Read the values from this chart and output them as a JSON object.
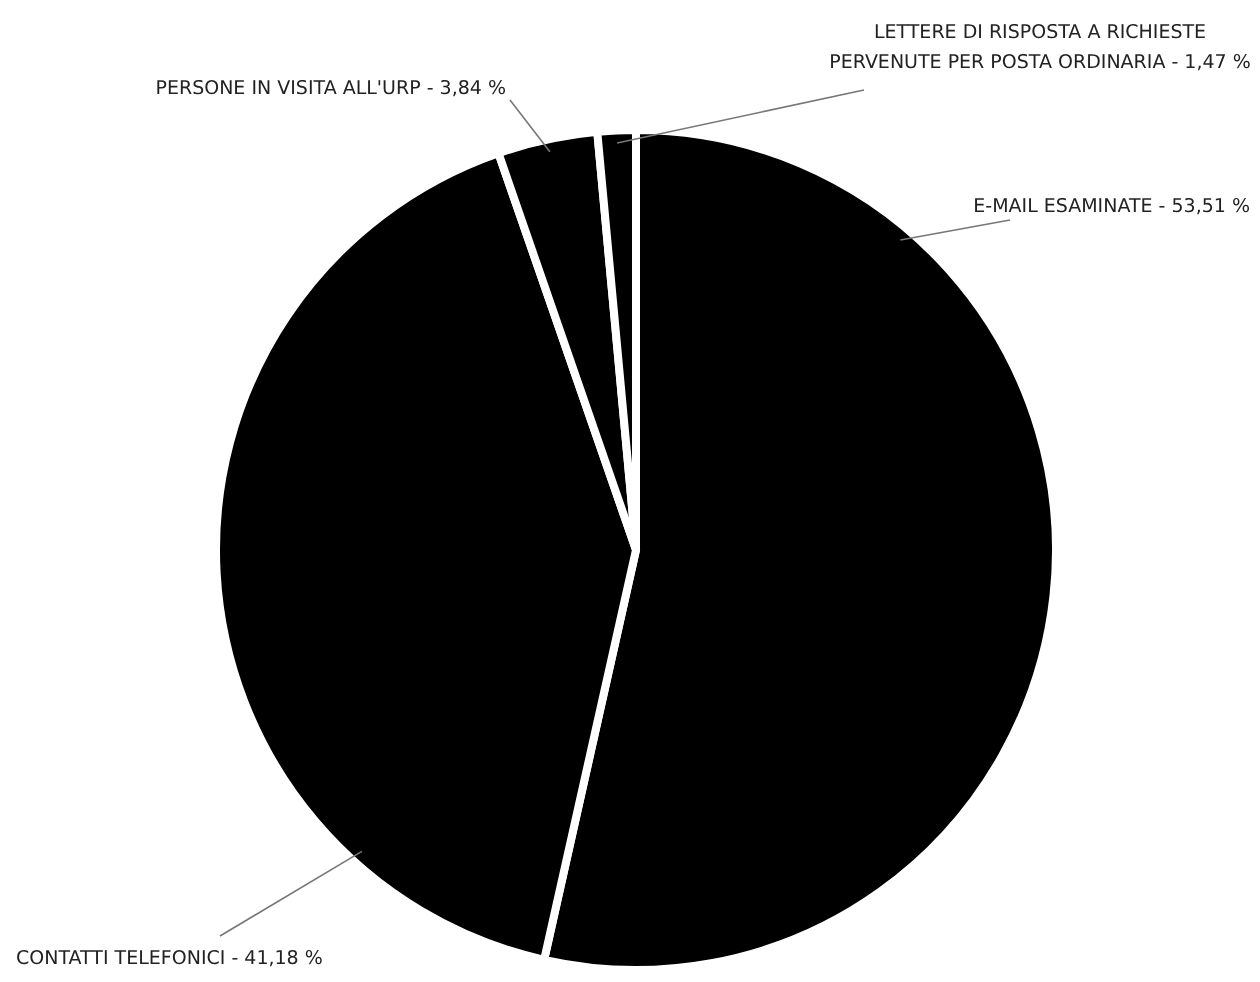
{
  "chart_data": {
    "type": "pie",
    "categories": [
      "E-MAIL ESAMINATE",
      "CONTATTI TELEFONICI",
      "PERSONE IN VISITA ALL'URP",
      "LETTERE DI RISPOSTA A RICHIESTE\nPERVENUTE PER POSTA ORDINARIA"
    ],
    "values": [
      53.51,
      41.18,
      3.84,
      1.47
    ],
    "value_labels": [
      "53,51 %",
      "41,18 %",
      "3,84 %",
      "1,47 %"
    ],
    "colors": [
      "#000000",
      "#000000",
      "#000000",
      "#000000"
    ]
  }
}
